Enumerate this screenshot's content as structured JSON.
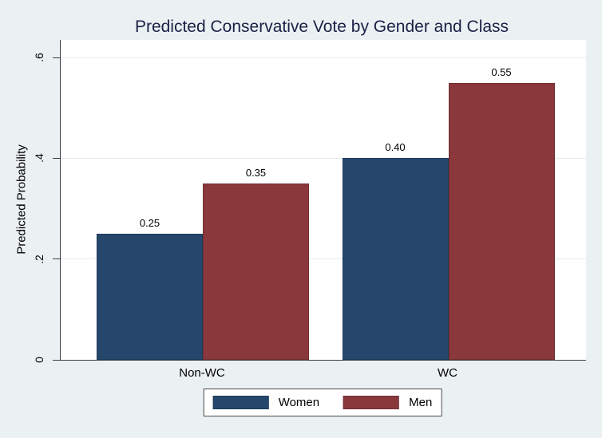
{
  "figure": {
    "background_color": "#ebf1f3",
    "plot_background_color": "#ffffff",
    "gridline_color": "#e3edf0",
    "axis_color": "#3d3d3d",
    "title_color": "#1a2145",
    "legend_border_color": "#4a4a4a"
  },
  "chart_data": {
    "type": "bar",
    "title": "Predicted Conservative Vote by Gender and Class",
    "ylabel": "Predicted Probability",
    "xlabel": "",
    "categories": [
      "Non-WC",
      "WC"
    ],
    "series": [
      {
        "name": "Women",
        "color": "#26476c",
        "border_color": "#1d3b5b",
        "values": [
          0.25,
          0.4
        ],
        "value_labels": [
          "0.25",
          "0.40"
        ]
      },
      {
        "name": "Men",
        "color": "#8a383c",
        "border_color": "#712f33",
        "values": [
          0.35,
          0.55
        ],
        "value_labels": [
          "0.35",
          "0.55"
        ]
      }
    ],
    "ylim": [
      0,
      0.635
    ],
    "yticks": [
      {
        "value": 0,
        "label": "0"
      },
      {
        "value": 0.2,
        "label": ".2"
      },
      {
        "value": 0.4,
        "label": ".4"
      },
      {
        "value": 0.6,
        "label": ".6"
      }
    ],
    "grid": true,
    "legend_position": "bottom-center"
  }
}
